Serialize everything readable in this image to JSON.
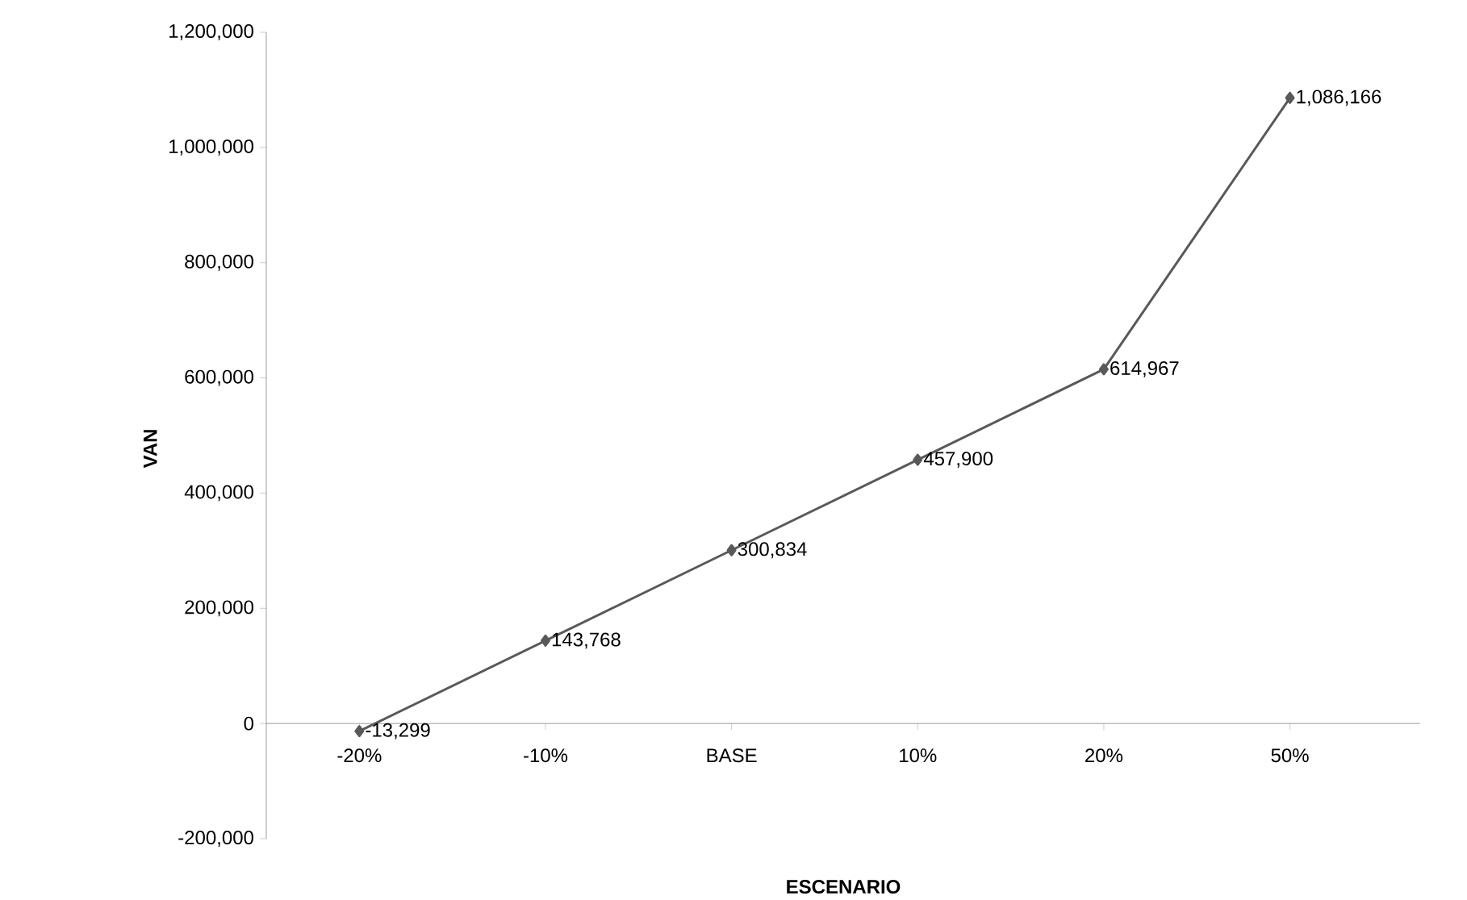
{
  "chart_data": {
    "type": "line",
    "xlabel": "ESCENARIO",
    "ylabel": "VAN",
    "categories": [
      "-20%",
      "-10%",
      "BASE",
      "10%",
      "20%",
      "50%"
    ],
    "values": [
      -13299,
      143768,
      300834,
      457900,
      614967,
      1086166
    ],
    "value_labels": [
      "-13,299",
      "143,768",
      "300,834",
      "457,900",
      "614,967",
      "1,086,166"
    ],
    "color": "#595959",
    "marker": "diamond",
    "line_style": "solid",
    "ylim": [
      -200000,
      1200000
    ],
    "yticks": [
      {
        "value": -200000,
        "label": "-200,000"
      },
      {
        "value": 0,
        "label": "0"
      },
      {
        "value": 200000,
        "label": "200,000"
      },
      {
        "value": 400000,
        "label": "400,000"
      },
      {
        "value": 600000,
        "label": "600,000"
      },
      {
        "value": 800000,
        "label": "800,000"
      },
      {
        "value": 1000000,
        "label": "1,000,000"
      },
      {
        "value": 1200000,
        "label": "1,200,000"
      }
    ],
    "grid": false
  }
}
